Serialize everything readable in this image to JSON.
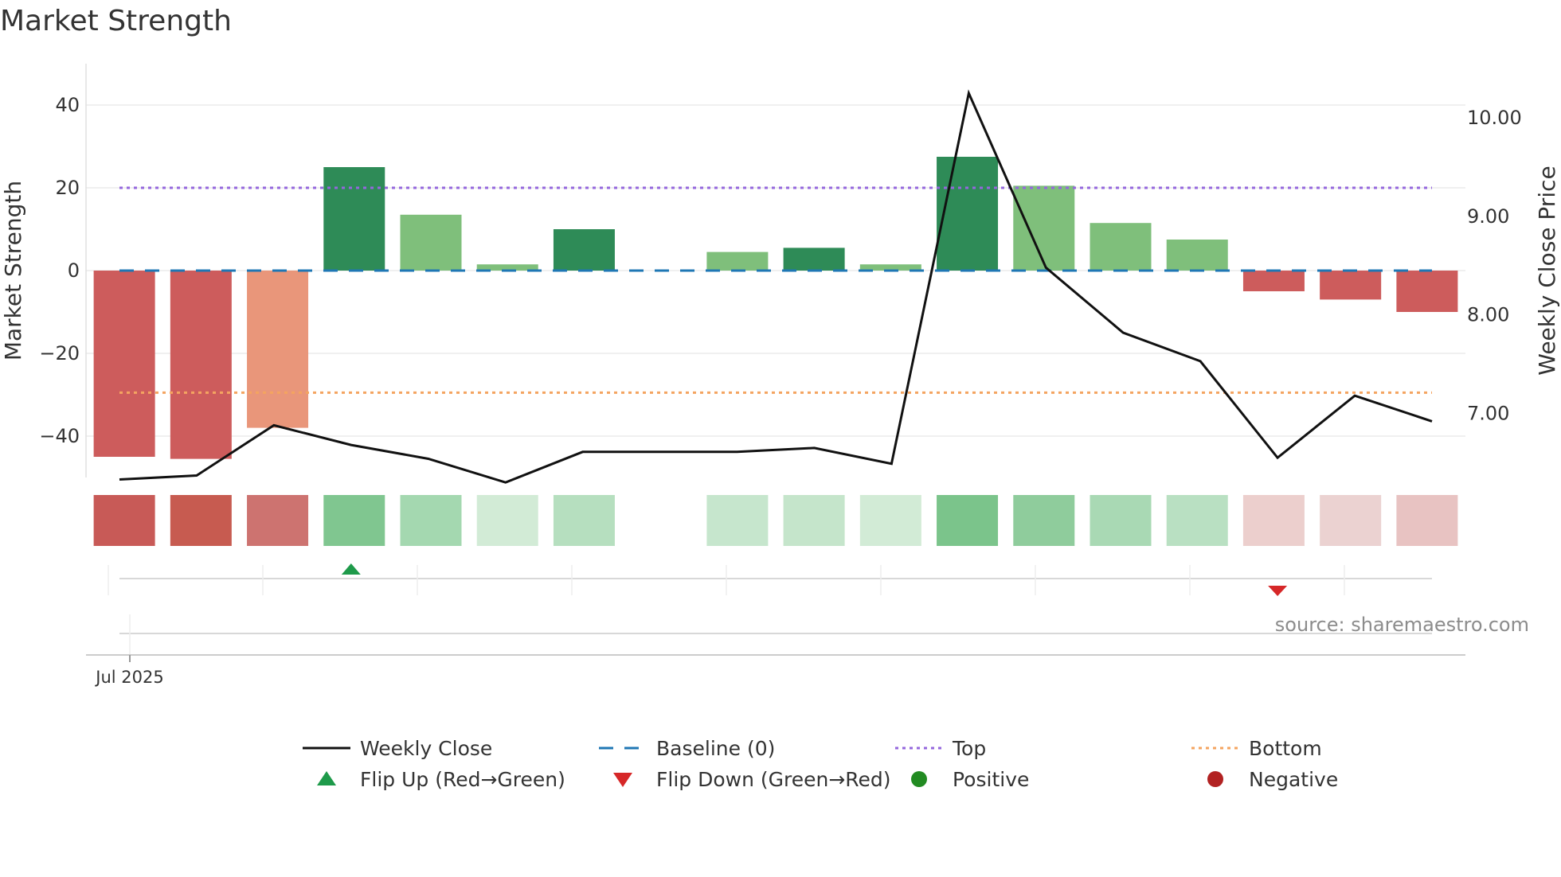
{
  "title": "Market Strength",
  "source": "source: sharemaestro.com",
  "chart_data": {
    "type": "bar",
    "title": "Market Strength",
    "ylabel": "Market Strength",
    "y2label": "Weekly Close Price",
    "ylim": [
      -50,
      50
    ],
    "y2lim": [
      6.35,
      10.55
    ],
    "yticks": [
      -40,
      -20,
      0,
      20,
      40
    ],
    "ytick_labels": [
      "−40",
      "−20",
      "0",
      "20",
      "40"
    ],
    "y2ticks": [
      7,
      8,
      9,
      10
    ],
    "y2tick_labels": [
      "7.00",
      "8.00",
      "9.00",
      "10.00"
    ],
    "x_tick_label": "Jul 2025",
    "strength": [
      -45,
      -45.5,
      -38,
      25,
      13.5,
      1.5,
      10,
      null,
      4.5,
      5.5,
      1.5,
      27.5,
      20.5,
      11.5,
      7.5,
      -5,
      -7,
      -10
    ],
    "bar_colors": [
      "#cd5c5c",
      "#cd5c5c",
      "#e9967a",
      "#2e8b57",
      "#7fbf7b",
      "#7fbf7b",
      "#2e8b57",
      null,
      "#7fbf7b",
      "#2e8b57",
      "#7fbf7b",
      "#2e8b57",
      "#7fbf7b",
      "#7fbf7b",
      "#7fbf7b",
      "#cd5c5c",
      "#cd5c5c",
      "#cd5c5c"
    ],
    "heat_colors": [
      "#c85a57",
      "#c75b50",
      "#cd7370",
      "#80c690",
      "#a4d8b0",
      "#d2ebd6",
      "#b6dfbf",
      null,
      "#c6e6cd",
      "#c5e5cb",
      "#d2ebd6",
      "#7bc48b",
      "#8fcc9c",
      "#a9d9b4",
      "#b9e0c2",
      "#eccfcd",
      "#ebd2d1",
      "#e8c3c2"
    ],
    "weekly_close": [
      6.33,
      6.37,
      6.88,
      6.68,
      6.54,
      6.3,
      6.61,
      6.61,
      6.61,
      6.65,
      6.49,
      10.25,
      8.48,
      7.82,
      7.53,
      6.55,
      7.18,
      6.92
    ],
    "baseline": 0,
    "top": 20,
    "bottom": -29.5,
    "flip_up_index": 3,
    "flip_down_index": 15,
    "series": [
      {
        "name": "Weekly Close",
        "color": "#111111"
      },
      {
        "name": "Baseline (0)",
        "color": "#1f77b4"
      },
      {
        "name": "Top",
        "color": "#9467dd"
      },
      {
        "name": "Bottom",
        "color": "#f4a460"
      }
    ]
  },
  "legend": {
    "items": [
      {
        "label": "Weekly Close",
        "kind": "line",
        "color": "#111111"
      },
      {
        "label": "Baseline (0)",
        "kind": "dash",
        "color": "#1f77b4"
      },
      {
        "label": "Top",
        "kind": "dot",
        "color": "#9467dd"
      },
      {
        "label": "Bottom",
        "kind": "dot",
        "color": "#f4a460"
      },
      {
        "label": "Flip Up (Red→Green)",
        "kind": "tri-up",
        "color": "#1e9a4a"
      },
      {
        "label": "Flip Down (Green→Red)",
        "kind": "tri-down",
        "color": "#d62728"
      },
      {
        "label": "Positive",
        "kind": "circle",
        "color": "#228b22"
      },
      {
        "label": "Negative",
        "kind": "circle",
        "color": "#b22222"
      }
    ]
  }
}
